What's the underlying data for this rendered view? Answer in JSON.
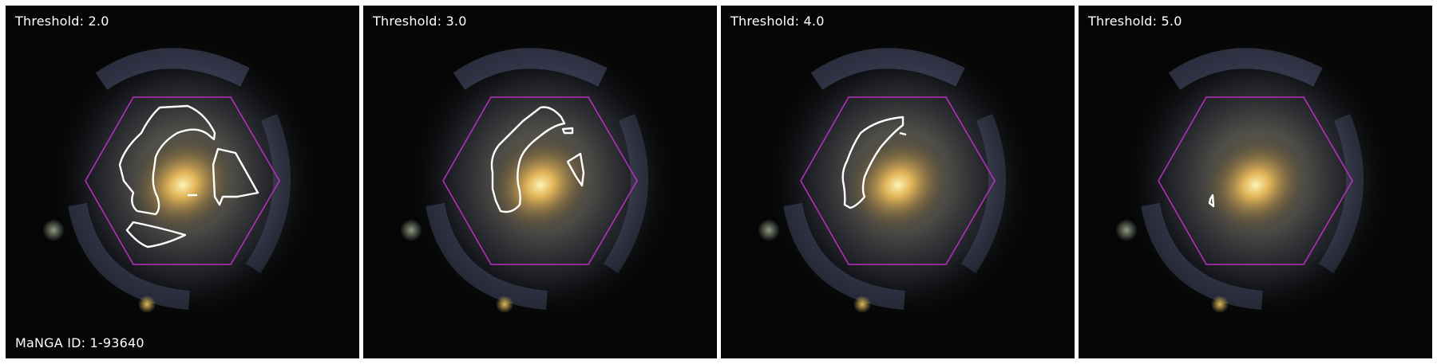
{
  "figure": {
    "panels": [
      {
        "threshold_label": "Threshold: 2.0"
      },
      {
        "threshold_label": "Threshold: 3.0"
      },
      {
        "threshold_label": "Threshold: 4.0"
      },
      {
        "threshold_label": "Threshold: 5.0"
      }
    ],
    "manga_id_label": "MaNGA ID: 1-93640",
    "colors": {
      "hexagon": "#b32fb8",
      "contour": "#ffffff",
      "background": "#050505",
      "galaxy_core": "#ffd86a",
      "spiral_arms": "#7f86a6"
    }
  }
}
